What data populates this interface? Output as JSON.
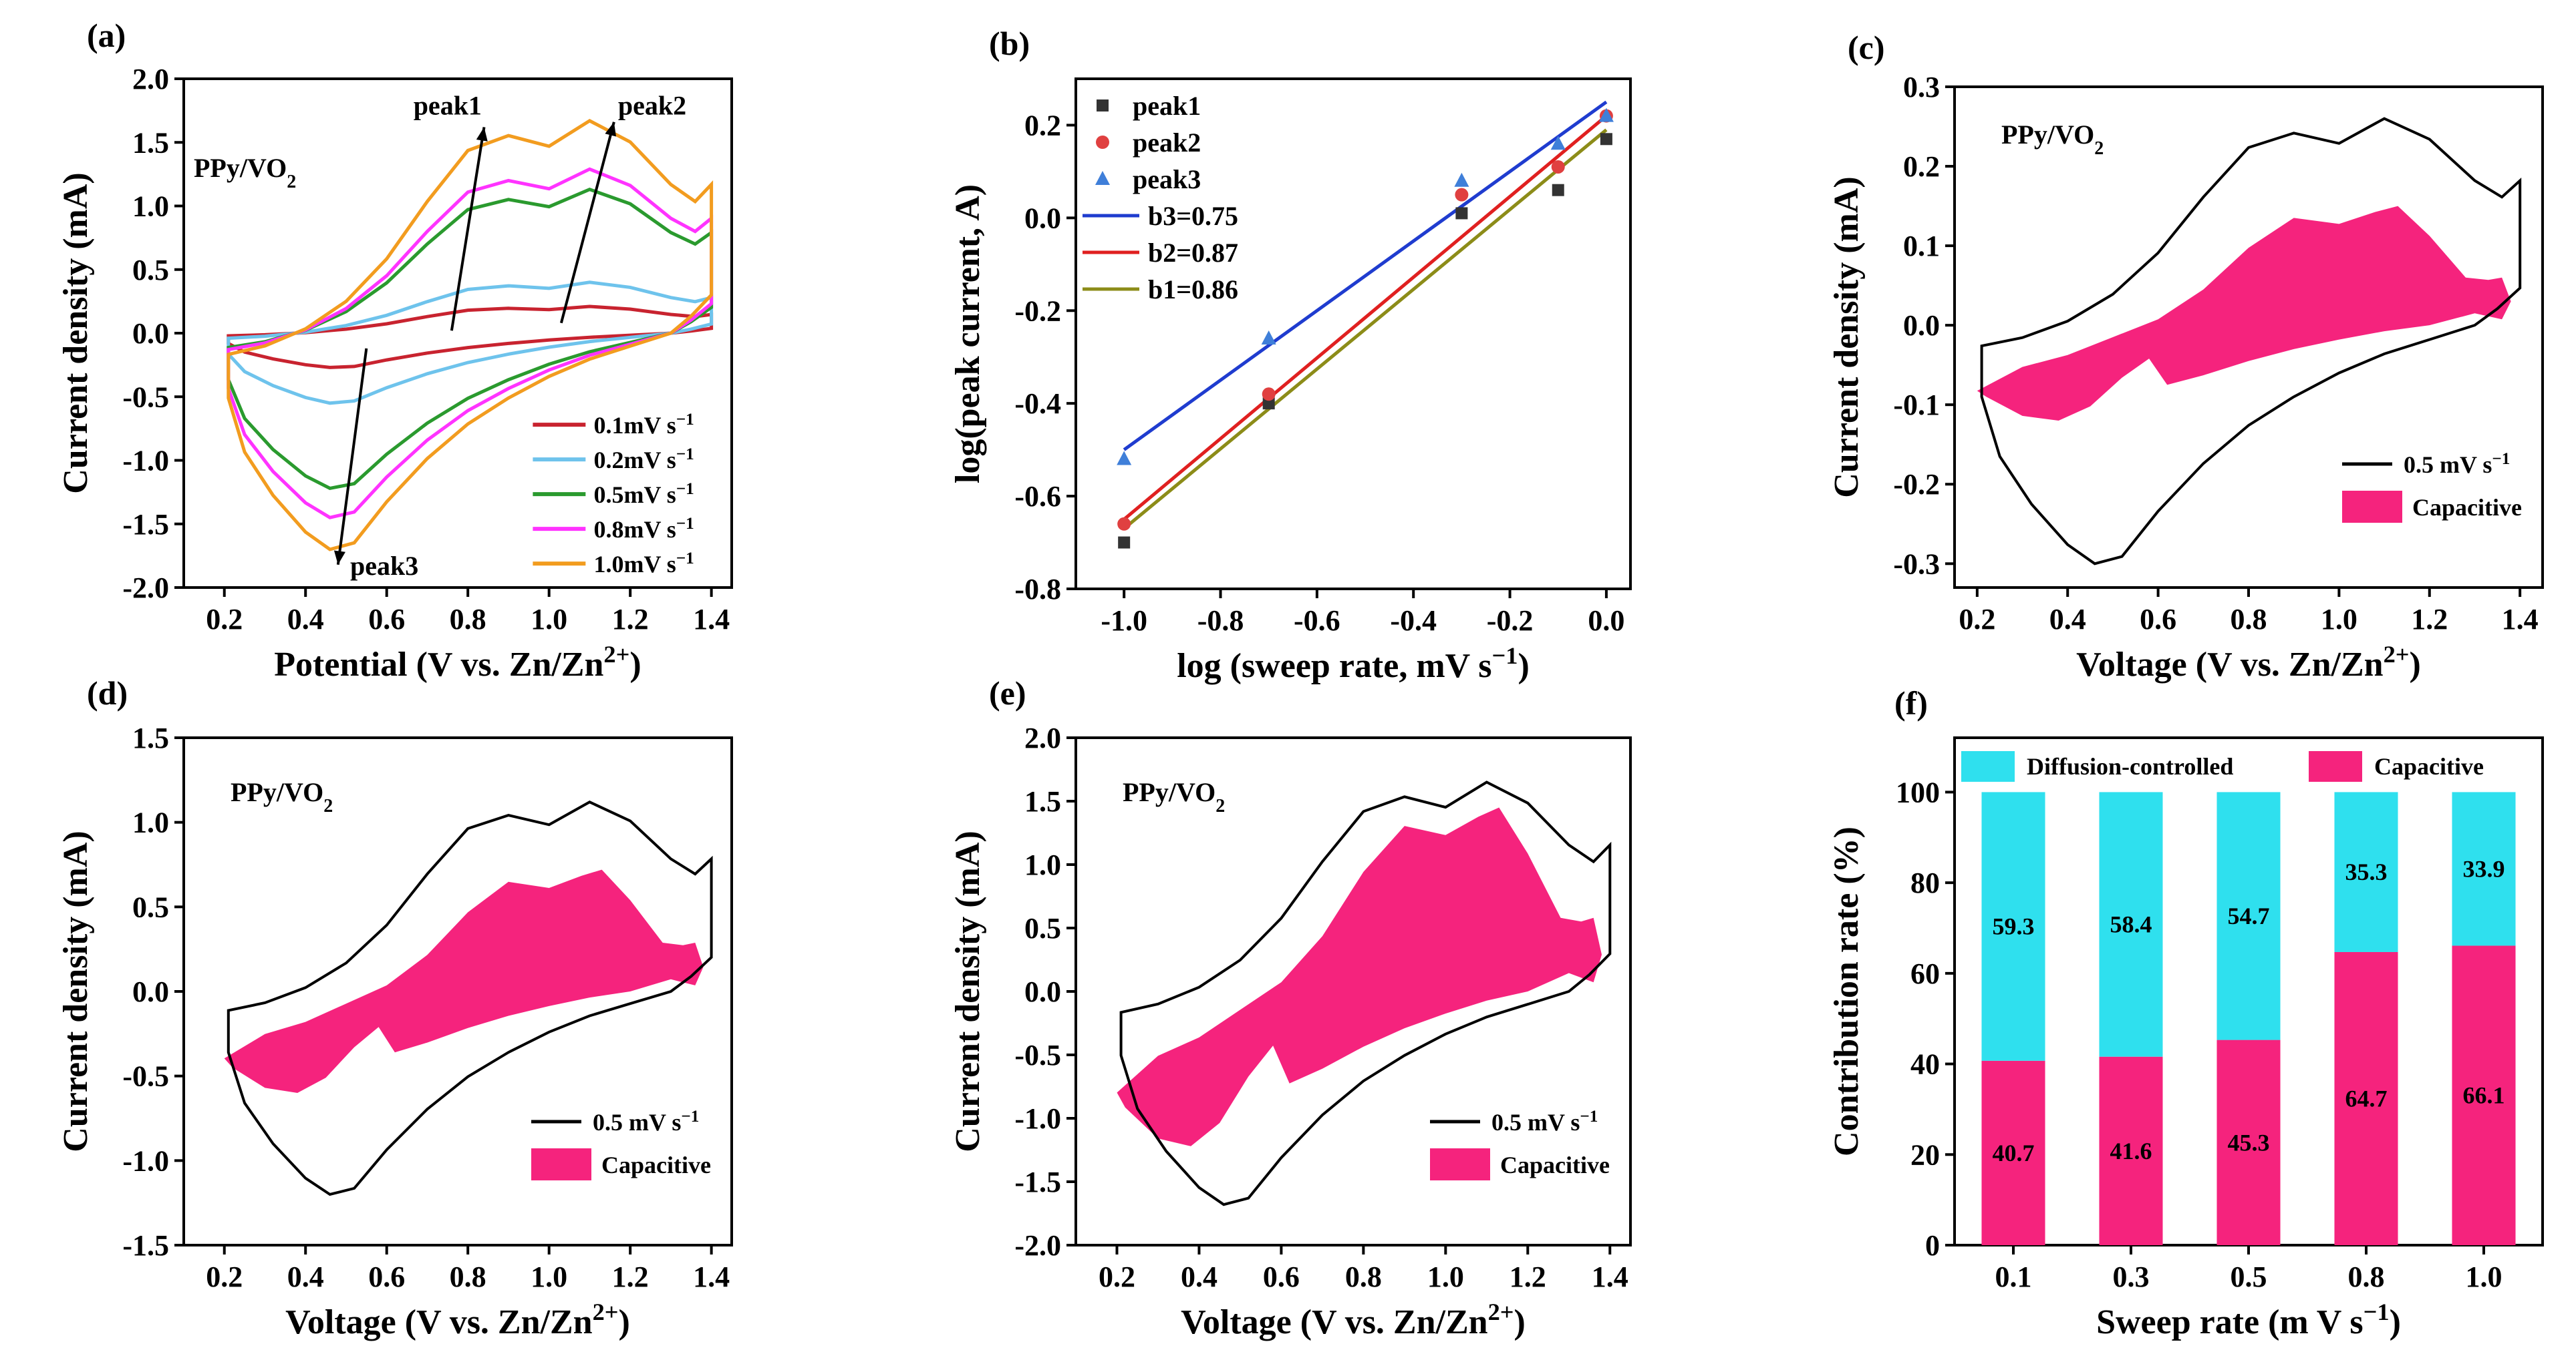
{
  "figure": {
    "colors": {
      "cap": "#f5237d",
      "diff": "#2fe0ee",
      "s01": "#c8232f",
      "s02": "#6ec3ec",
      "s05": "#2a9a2e",
      "s08": "#ff33ff",
      "s10": "#f29c1f",
      "fit3": "#1f3ccf",
      "fit2": "#e02020",
      "fit1": "#8c8c18",
      "p1": "#333333",
      "p2": "#e04040",
      "p3": "#3f7fd9"
    }
  },
  "chart_data": [
    {
      "panel": "(a)",
      "type": "line",
      "title": "",
      "xlabel": "Potential (V vs. Zn/Zn",
      "xlabel_sup": "2+",
      "xlabel_end": ")",
      "ylabel": "Current density (mA)",
      "xlim": [
        0.1,
        1.45
      ],
      "ylim": [
        -2.0,
        2.0
      ],
      "xticks": [
        "0.2",
        "0.4",
        "0.6",
        "0.8",
        "1.0",
        "1.2",
        "1.4"
      ],
      "yticks": [
        "-2.0",
        "-1.5",
        "-1.0",
        "-0.5",
        "0.0",
        "0.5",
        "1.0",
        "1.5",
        "2.0"
      ],
      "inner_label": "PPy/VO",
      "inner_label_sub": "2",
      "annotations": [
        "peak1",
        "peak2",
        "peak3"
      ],
      "series": [
        {
          "name": "0.1mV s",
          "sup": "−1",
          "peak": 0.21,
          "trough": -0.27
        },
        {
          "name": "0.2mV s",
          "sup": "−1",
          "peak": 0.4,
          "trough": -0.55
        },
        {
          "name": "0.5mV s",
          "sup": "−1",
          "peak": 1.13,
          "trough": -1.22
        },
        {
          "name": "0.8mV s",
          "sup": "−1",
          "peak": 1.29,
          "trough": -1.45
        },
        {
          "name": "1.0mV s",
          "sup": "−1",
          "peak": 1.67,
          "trough": -1.7
        }
      ]
    },
    {
      "panel": "(b)",
      "type": "scatter",
      "xlabel": "log (sweep rate, mV s",
      "xlabel_sup": "−1",
      "xlabel_end": ")",
      "ylabel": "log(peak current, A)",
      "xlim": [
        -1.1,
        0.05
      ],
      "ylim": [
        -0.8,
        0.3
      ],
      "xticks": [
        "-1.0",
        "-0.8",
        "-0.6",
        "-0.4",
        "-0.2",
        "0.0"
      ],
      "yticks": [
        "-0.8",
        "-0.6",
        "-0.4",
        "-0.2",
        "0.0",
        "0.2"
      ],
      "x": [
        -1.0,
        -0.7,
        -0.3,
        -0.1,
        0.0
      ],
      "series": [
        {
          "name": "peak1",
          "values": [
            -0.7,
            -0.4,
            0.01,
            0.06,
            0.17
          ]
        },
        {
          "name": "peak2",
          "values": [
            -0.66,
            -0.38,
            0.05,
            0.11,
            0.22
          ]
        },
        {
          "name": "peak3",
          "values": [
            -0.52,
            -0.26,
            0.08,
            0.16,
            0.22
          ]
        }
      ],
      "fits": [
        {
          "name": "b3=0.75",
          "y0": -0.5,
          "y1": 0.25
        },
        {
          "name": "b2=0.87",
          "y0": -0.65,
          "y1": 0.22
        },
        {
          "name": "b1=0.86",
          "y0": -0.67,
          "y1": 0.19
        }
      ]
    },
    {
      "panel": "(c)",
      "type": "area",
      "xlabel": "Voltage (V vs. Zn/Zn",
      "xlabel_sup": "2+",
      "xlabel_end": ")",
      "ylabel": "Current density (mA)",
      "xlim": [
        0.15,
        1.45
      ],
      "ylim": [
        -0.33,
        0.3
      ],
      "xticks": [
        "0.2",
        "0.4",
        "0.6",
        "0.8",
        "1.0",
        "1.2",
        "1.4"
      ],
      "yticks": [
        "-0.3",
        "-0.2",
        "-0.1",
        "0.0",
        "0.1",
        "0.2",
        "0.3"
      ],
      "inner_label": "PPy/VO",
      "inner_label_sub": "2",
      "legend": [
        "0.5 mV s",
        "Capacitive"
      ],
      "legend_sup": "−1",
      "cv_peak": 0.26,
      "cv_trough": -0.3,
      "cap_peak": 0.15,
      "cap_trough": -0.12
    },
    {
      "panel": "(d)",
      "type": "area",
      "xlabel": "Voltage (V vs. Zn/Zn",
      "xlabel_sup": "2+",
      "xlabel_end": ")",
      "ylabel": "Current density (mA)",
      "xlim": [
        0.1,
        1.45
      ],
      "ylim": [
        -1.5,
        1.5
      ],
      "xticks": [
        "0.2",
        "0.4",
        "0.6",
        "0.8",
        "1.0",
        "1.2",
        "1.4"
      ],
      "yticks": [
        "-1.5",
        "-1.0",
        "-0.5",
        "0.0",
        "0.5",
        "1.0",
        "1.5"
      ],
      "inner_label": "PPy/VO",
      "inner_label_sub": "2",
      "legend": [
        "0.5 mV s",
        "Capacitive"
      ],
      "legend_sup": "−1",
      "cv_peak": 1.12,
      "cv_trough": -1.2,
      "cap_peak": 0.72,
      "cap_trough": -0.6
    },
    {
      "panel": "(e)",
      "type": "area",
      "xlabel": "Voltage (V vs. Zn/Zn",
      "xlabel_sup": "2+",
      "xlabel_end": ")",
      "ylabel": "Current density (mA)",
      "xlim": [
        0.1,
        1.45
      ],
      "ylim": [
        -2.0,
        2.0
      ],
      "xticks": [
        "0.2",
        "0.4",
        "0.6",
        "0.8",
        "1.0",
        "1.2",
        "1.4"
      ],
      "yticks": [
        "-2.0",
        "-1.5",
        "-1.0",
        "-0.5",
        "0.0",
        "0.5",
        "1.0",
        "1.5",
        "2.0"
      ],
      "inner_label": "PPy/VO",
      "inner_label_sub": "2",
      "legend": [
        "0.5 mV s",
        "Capacitive"
      ],
      "legend_sup": "−1",
      "cv_peak": 1.65,
      "cv_trough": -1.68,
      "cap_peak": 1.45,
      "cap_trough": -1.22
    },
    {
      "panel": "(f)",
      "type": "bar",
      "stacked": true,
      "xlabel": "Sweep rate (m V s",
      "xlabel_sup": "−1",
      "xlabel_end": ")",
      "ylabel": "Contribution rate (%)",
      "ylim": [
        0,
        100
      ],
      "yticks": [
        "0",
        "20",
        "40",
        "60",
        "80",
        "100"
      ],
      "categories": [
        "0.1",
        "0.3",
        "0.5",
        "0.8",
        "1.0"
      ],
      "legend": [
        "Diffusion-controlled",
        "Capacitive"
      ],
      "series": [
        {
          "name": "Capacitive",
          "values": [
            40.7,
            41.6,
            45.3,
            64.7,
            66.1
          ],
          "labels": [
            "40.7",
            "41.6",
            "45.3",
            "64.7",
            "66.1"
          ]
        },
        {
          "name": "Diffusion-controlled",
          "values": [
            59.3,
            58.4,
            54.7,
            35.3,
            33.9
          ],
          "labels": [
            "59.3",
            "58.4",
            "54.7",
            "35.3",
            "33.9"
          ]
        }
      ]
    }
  ]
}
